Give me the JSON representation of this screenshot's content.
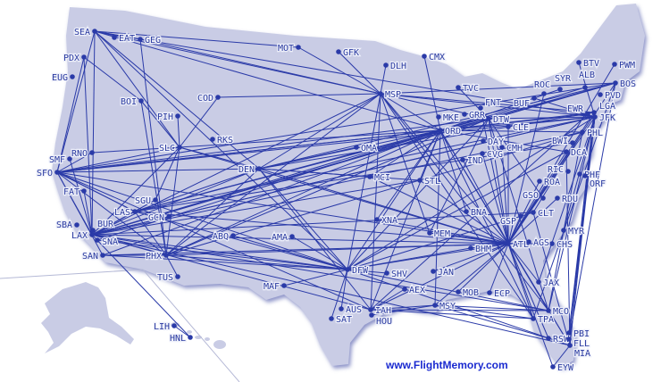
{
  "footer": {
    "site_link": "www.FlightMemory.com"
  },
  "colors": {
    "land": "#c9cce5",
    "route": "#2a3aa8",
    "label": "#2a3aa0",
    "shore": "#8c93c8"
  },
  "airports": [
    "SEA",
    "EAT",
    "GEG",
    "PDX",
    "EUG",
    "BOI",
    "PIH",
    "COD",
    "MOT",
    "GFK",
    "DLH",
    "CMX",
    "MSP",
    "TVC",
    "MKE",
    "ORD",
    "GRR",
    "FNT",
    "DTW",
    "CLE",
    "BUF",
    "ROC",
    "SYR",
    "ALB",
    "BOS",
    "PVD",
    "BTV",
    "PWM",
    "LGA",
    "JFK",
    "EWR",
    "PHL",
    "BWI",
    "DCA",
    "RIC",
    "PHF",
    "ORF",
    "ROA",
    "RDU",
    "GSO",
    "CLT",
    "GSP",
    "MYR",
    "CHS",
    "AGS",
    "ATL",
    "BHM",
    "JAX",
    "MCO",
    "TPA",
    "RSW",
    "PBI",
    "FLL",
    "MIA",
    "EYW",
    "ECP",
    "MOB",
    "MSY",
    "JAN",
    "AEX",
    "SHV",
    "MEM",
    "BNA",
    "XNA",
    "STL",
    "MCI",
    "OMA",
    "IND",
    "CVG",
    "DAY",
    "CMH",
    "DFW",
    "AUS",
    "IAH",
    "HOU",
    "SAT",
    "MAF",
    "AMA",
    "ABQ",
    "DEN",
    "SLC",
    "RKS",
    "SGU",
    "LAS",
    "GCN",
    "PHX",
    "TUS",
    "SAN",
    "SNA",
    "LAX",
    "BUR",
    "SBA",
    "FAT",
    "SFO",
    "SMF",
    "RNO",
    "LIH",
    "HNL"
  ],
  "routes": [
    [
      "SEA",
      "GEG"
    ],
    [
      "SEA",
      "MSP"
    ],
    [
      "SEA",
      "MOT"
    ],
    [
      "SEA",
      "SFO"
    ],
    [
      "SEA",
      "LAX"
    ],
    [
      "SEA",
      "DEN"
    ],
    [
      "SEA",
      "ORD"
    ],
    [
      "SEA",
      "SLC"
    ],
    [
      "GEG",
      "MSP"
    ],
    [
      "GEG",
      "PHX"
    ],
    [
      "PDX",
      "SFO"
    ],
    [
      "PDX",
      "BOI"
    ],
    [
      "PDX",
      "LAX"
    ],
    [
      "BOI",
      "SLC"
    ],
    [
      "BOI",
      "PHX"
    ],
    [
      "COD",
      "SLC"
    ],
    [
      "COD",
      "MSP"
    ],
    [
      "PIH",
      "SLC"
    ],
    [
      "MOT",
      "MSP"
    ],
    [
      "GFK",
      "MSP"
    ],
    [
      "DLH",
      "MSP"
    ],
    [
      "CMX",
      "ORD"
    ],
    [
      "MSP",
      "ORD"
    ],
    [
      "MSP",
      "DTW"
    ],
    [
      "MSP",
      "JFK"
    ],
    [
      "MSP",
      "BOS"
    ],
    [
      "MSP",
      "DEN"
    ],
    [
      "MSP",
      "LAX"
    ],
    [
      "MSP",
      "PHX"
    ],
    [
      "MSP",
      "ATL"
    ],
    [
      "MSP",
      "DFW"
    ],
    [
      "MSP",
      "MCO"
    ],
    [
      "MSP",
      "TPA"
    ],
    [
      "MSP",
      "IAH"
    ],
    [
      "MSP",
      "LGA"
    ],
    [
      "ORD",
      "JFK"
    ],
    [
      "ORD",
      "LGA"
    ],
    [
      "ORD",
      "BOS"
    ],
    [
      "ORD",
      "PHL"
    ],
    [
      "ORD",
      "DCA"
    ],
    [
      "ORD",
      "SFO"
    ],
    [
      "ORD",
      "LAX"
    ],
    [
      "ORD",
      "DEN"
    ],
    [
      "ORD",
      "PHX"
    ],
    [
      "ORD",
      "LAS"
    ],
    [
      "ORD",
      "DFW"
    ],
    [
      "ORD",
      "IAH"
    ],
    [
      "ORD",
      "ATL"
    ],
    [
      "ORD",
      "MCO"
    ],
    [
      "ORD",
      "MIA"
    ],
    [
      "ORD",
      "TPA"
    ],
    [
      "ORD",
      "MSY"
    ],
    [
      "ORD",
      "SAN"
    ],
    [
      "ORD",
      "SNA"
    ],
    [
      "DTW",
      "JFK"
    ],
    [
      "DTW",
      "BOS"
    ],
    [
      "DTW",
      "LAX"
    ],
    [
      "DTW",
      "SFO"
    ],
    [
      "DTW",
      "ATL"
    ],
    [
      "DTW",
      "MCO"
    ],
    [
      "DTW",
      "DFW"
    ],
    [
      "DTW",
      "PHX"
    ],
    [
      "DTW",
      "LAS"
    ],
    [
      "TVC",
      "DTW"
    ],
    [
      "FNT",
      "ATL"
    ],
    [
      "JFK",
      "SFO"
    ],
    [
      "JFK",
      "LAX"
    ],
    [
      "JFK",
      "ATL"
    ],
    [
      "JFK",
      "MIA"
    ],
    [
      "JFK",
      "FLL"
    ],
    [
      "JFK",
      "MCO"
    ],
    [
      "JFK",
      "PBI"
    ],
    [
      "JFK",
      "DFW"
    ],
    [
      "JFK",
      "LAS"
    ],
    [
      "JFK",
      "SEA"
    ],
    [
      "LGA",
      "ATL"
    ],
    [
      "LGA",
      "MIA"
    ],
    [
      "LGA",
      "DEN"
    ],
    [
      "EWR",
      "SFO"
    ],
    [
      "EWR",
      "IAH"
    ],
    [
      "BOS",
      "SFO"
    ],
    [
      "BOS",
      "LAX"
    ],
    [
      "BOS",
      "DEN"
    ],
    [
      "BOS",
      "ATL"
    ],
    [
      "BOS",
      "FLL"
    ],
    [
      "BOS",
      "TPA"
    ],
    [
      "PHL",
      "LAX"
    ],
    [
      "PHL",
      "PHX"
    ],
    [
      "PHL",
      "MCO"
    ],
    [
      "PHL",
      "CLT"
    ],
    [
      "DCA",
      "ATL"
    ],
    [
      "DCA",
      "DFW"
    ],
    [
      "DCA",
      "MIA"
    ],
    [
      "BWI",
      "LAS"
    ],
    [
      "ATL",
      "LAX"
    ],
    [
      "ATL",
      "SFO"
    ],
    [
      "ATL",
      "DEN"
    ],
    [
      "ATL",
      "DFW"
    ],
    [
      "ATL",
      "IAH"
    ],
    [
      "ATL",
      "MIA"
    ],
    [
      "ATL",
      "MCO"
    ],
    [
      "ATL",
      "TPA"
    ],
    [
      "ATL",
      "MSY"
    ],
    [
      "ATL",
      "LAS"
    ],
    [
      "ATL",
      "PHX"
    ],
    [
      "ATL",
      "SAN"
    ],
    [
      "ATL",
      "RSW"
    ],
    [
      "ATL",
      "JAX"
    ],
    [
      "ATL",
      "CHS"
    ],
    [
      "ATL",
      "MEM"
    ],
    [
      "ATL",
      "BHM"
    ],
    [
      "ATL",
      "ECP"
    ],
    [
      "ATL",
      "RDU"
    ],
    [
      "CLT",
      "MIA"
    ],
    [
      "CLT",
      "DFW"
    ],
    [
      "CLT",
      "LAX"
    ],
    [
      "DFW",
      "LAX"
    ],
    [
      "DFW",
      "SFO"
    ],
    [
      "DFW",
      "DEN"
    ],
    [
      "DFW",
      "LAS"
    ],
    [
      "DFW",
      "PHX"
    ],
    [
      "DFW",
      "MIA"
    ],
    [
      "DFW",
      "MCO"
    ],
    [
      "DFW",
      "SEA"
    ],
    [
      "DFW",
      "AUS"
    ],
    [
      "DFW",
      "SAT"
    ],
    [
      "DFW",
      "SHV"
    ],
    [
      "DFW",
      "MAF"
    ],
    [
      "DFW",
      "AMA"
    ],
    [
      "DFW",
      "ABQ"
    ],
    [
      "IAH",
      "LAX"
    ],
    [
      "IAH",
      "SFO"
    ],
    [
      "IAH",
      "DEN"
    ],
    [
      "IAH",
      "MSY"
    ],
    [
      "IAH",
      "AEX"
    ],
    [
      "IAH",
      "TPA"
    ],
    [
      "IAH",
      "MCO"
    ],
    [
      "HOU",
      "MSY"
    ],
    [
      "MSY",
      "TPA"
    ],
    [
      "MSY",
      "MCO"
    ],
    [
      "MSY",
      "RSW"
    ],
    [
      "DEN",
      "LAX"
    ],
    [
      "DEN",
      "SFO"
    ],
    [
      "DEN",
      "LAS"
    ],
    [
      "DEN",
      "PHX"
    ],
    [
      "DEN",
      "SLC"
    ],
    [
      "DEN",
      "STL"
    ],
    [
      "DEN",
      "MCI"
    ],
    [
      "DEN",
      "OMA"
    ],
    [
      "SLC",
      "SFO"
    ],
    [
      "SLC",
      "LAX"
    ],
    [
      "SLC",
      "PHX"
    ],
    [
      "SLC",
      "RNO"
    ],
    [
      "SLC",
      "ORD"
    ],
    [
      "SLC",
      "ATL"
    ],
    [
      "LAS",
      "LAX"
    ],
    [
      "LAS",
      "SFO"
    ],
    [
      "LAS",
      "PHX"
    ],
    [
      "SGU",
      "SLC"
    ],
    [
      "SGU",
      "LAX"
    ],
    [
      "PHX",
      "LAX"
    ],
    [
      "PHX",
      "SAN"
    ],
    [
      "PHX",
      "SFO"
    ],
    [
      "PHX",
      "TUS"
    ],
    [
      "SFO",
      "LAX"
    ],
    [
      "SFO",
      "SAN"
    ],
    [
      "SFO",
      "LAS"
    ],
    [
      "SFO",
      "RNO"
    ],
    [
      "SMF",
      "LAX"
    ],
    [
      "FAT",
      "LAX"
    ],
    [
      "STL",
      "ORD"
    ],
    [
      "STL",
      "ATL"
    ],
    [
      "STL",
      "LAX"
    ],
    [
      "MCI",
      "ORD"
    ],
    [
      "MCI",
      "ATL"
    ],
    [
      "MEM",
      "DTW"
    ],
    [
      "MEM",
      "MSP"
    ],
    [
      "BNA",
      "ORD"
    ],
    [
      "XNA",
      "ORD"
    ],
    [
      "XNA",
      "ATL"
    ],
    [
      "IND",
      "ATL"
    ],
    [
      "CVG",
      "ATL"
    ],
    [
      "CMH",
      "ATL"
    ],
    [
      "CLE",
      "ATL"
    ],
    [
      "BUF",
      "JFK"
    ],
    [
      "ROC",
      "ATL"
    ],
    [
      "SYR",
      "ORD"
    ],
    [
      "ALB",
      "ORD"
    ],
    [
      "BTV",
      "JFK"
    ],
    [
      "PWM",
      "ATL"
    ],
    [
      "ROA",
      "ATL"
    ],
    [
      "GSO",
      "DTW"
    ],
    [
      "GSP",
      "ATL"
    ],
    [
      "MYR",
      "JFK"
    ],
    [
      "AGS",
      "ATL"
    ],
    [
      "JAX",
      "JFK"
    ],
    [
      "PBI",
      "LGA"
    ],
    [
      "EYW",
      "ATL"
    ],
    [
      "EYW",
      "MIA"
    ],
    [
      "MOB",
      "ATL"
    ],
    [
      "JAN",
      "ATL"
    ],
    [
      "BHM",
      "DFW"
    ],
    [
      "LAX",
      "JFK"
    ],
    [
      "SNA",
      "DFW"
    ],
    [
      "LAX",
      "MIA"
    ],
    [
      "SAN",
      "DFW"
    ],
    [
      "LAX",
      "MCO"
    ],
    [
      "HNL",
      "LAX"
    ],
    [
      "LIH",
      "HNL"
    ]
  ]
}
